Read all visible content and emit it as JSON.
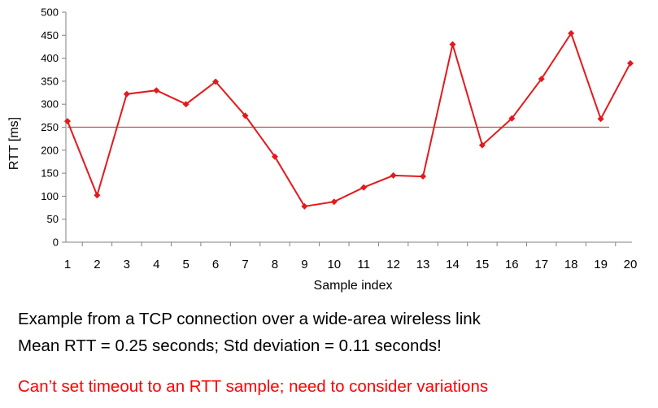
{
  "chart_data": {
    "type": "line",
    "xlabel": "Sample index",
    "ylabel": "RTT  [ms]",
    "ylim": [
      0,
      500
    ],
    "yticks": [
      0,
      50,
      100,
      150,
      200,
      250,
      300,
      350,
      400,
      450,
      500
    ],
    "categories": [
      "1",
      "2",
      "3",
      "4",
      "5",
      "6",
      "7",
      "8",
      "9",
      "10",
      "11",
      "12",
      "13",
      "14",
      "15",
      "16",
      "17",
      "18",
      "19",
      "20"
    ],
    "series": [
      {
        "values": [
          263,
          102,
          322,
          330,
          300,
          349,
          275,
          186,
          78,
          88,
          119,
          145,
          143,
          430,
          211,
          269,
          355,
          454,
          268,
          389
        ]
      }
    ],
    "reference_line": 250,
    "grid": false,
    "legend": "none",
    "colors": {
      "series": "#e31a1c",
      "reference": "#b05050",
      "axis": "#808080"
    }
  },
  "captions": {
    "line1": "Example from a TCP connection over a wide-area wireless link",
    "line2": "Mean RTT = 0.25 seconds; Std deviation = 0.11 seconds!",
    "note": "Can’t set timeout to an RTT sample; need to consider variations",
    "note_color": "#ff0000"
  }
}
